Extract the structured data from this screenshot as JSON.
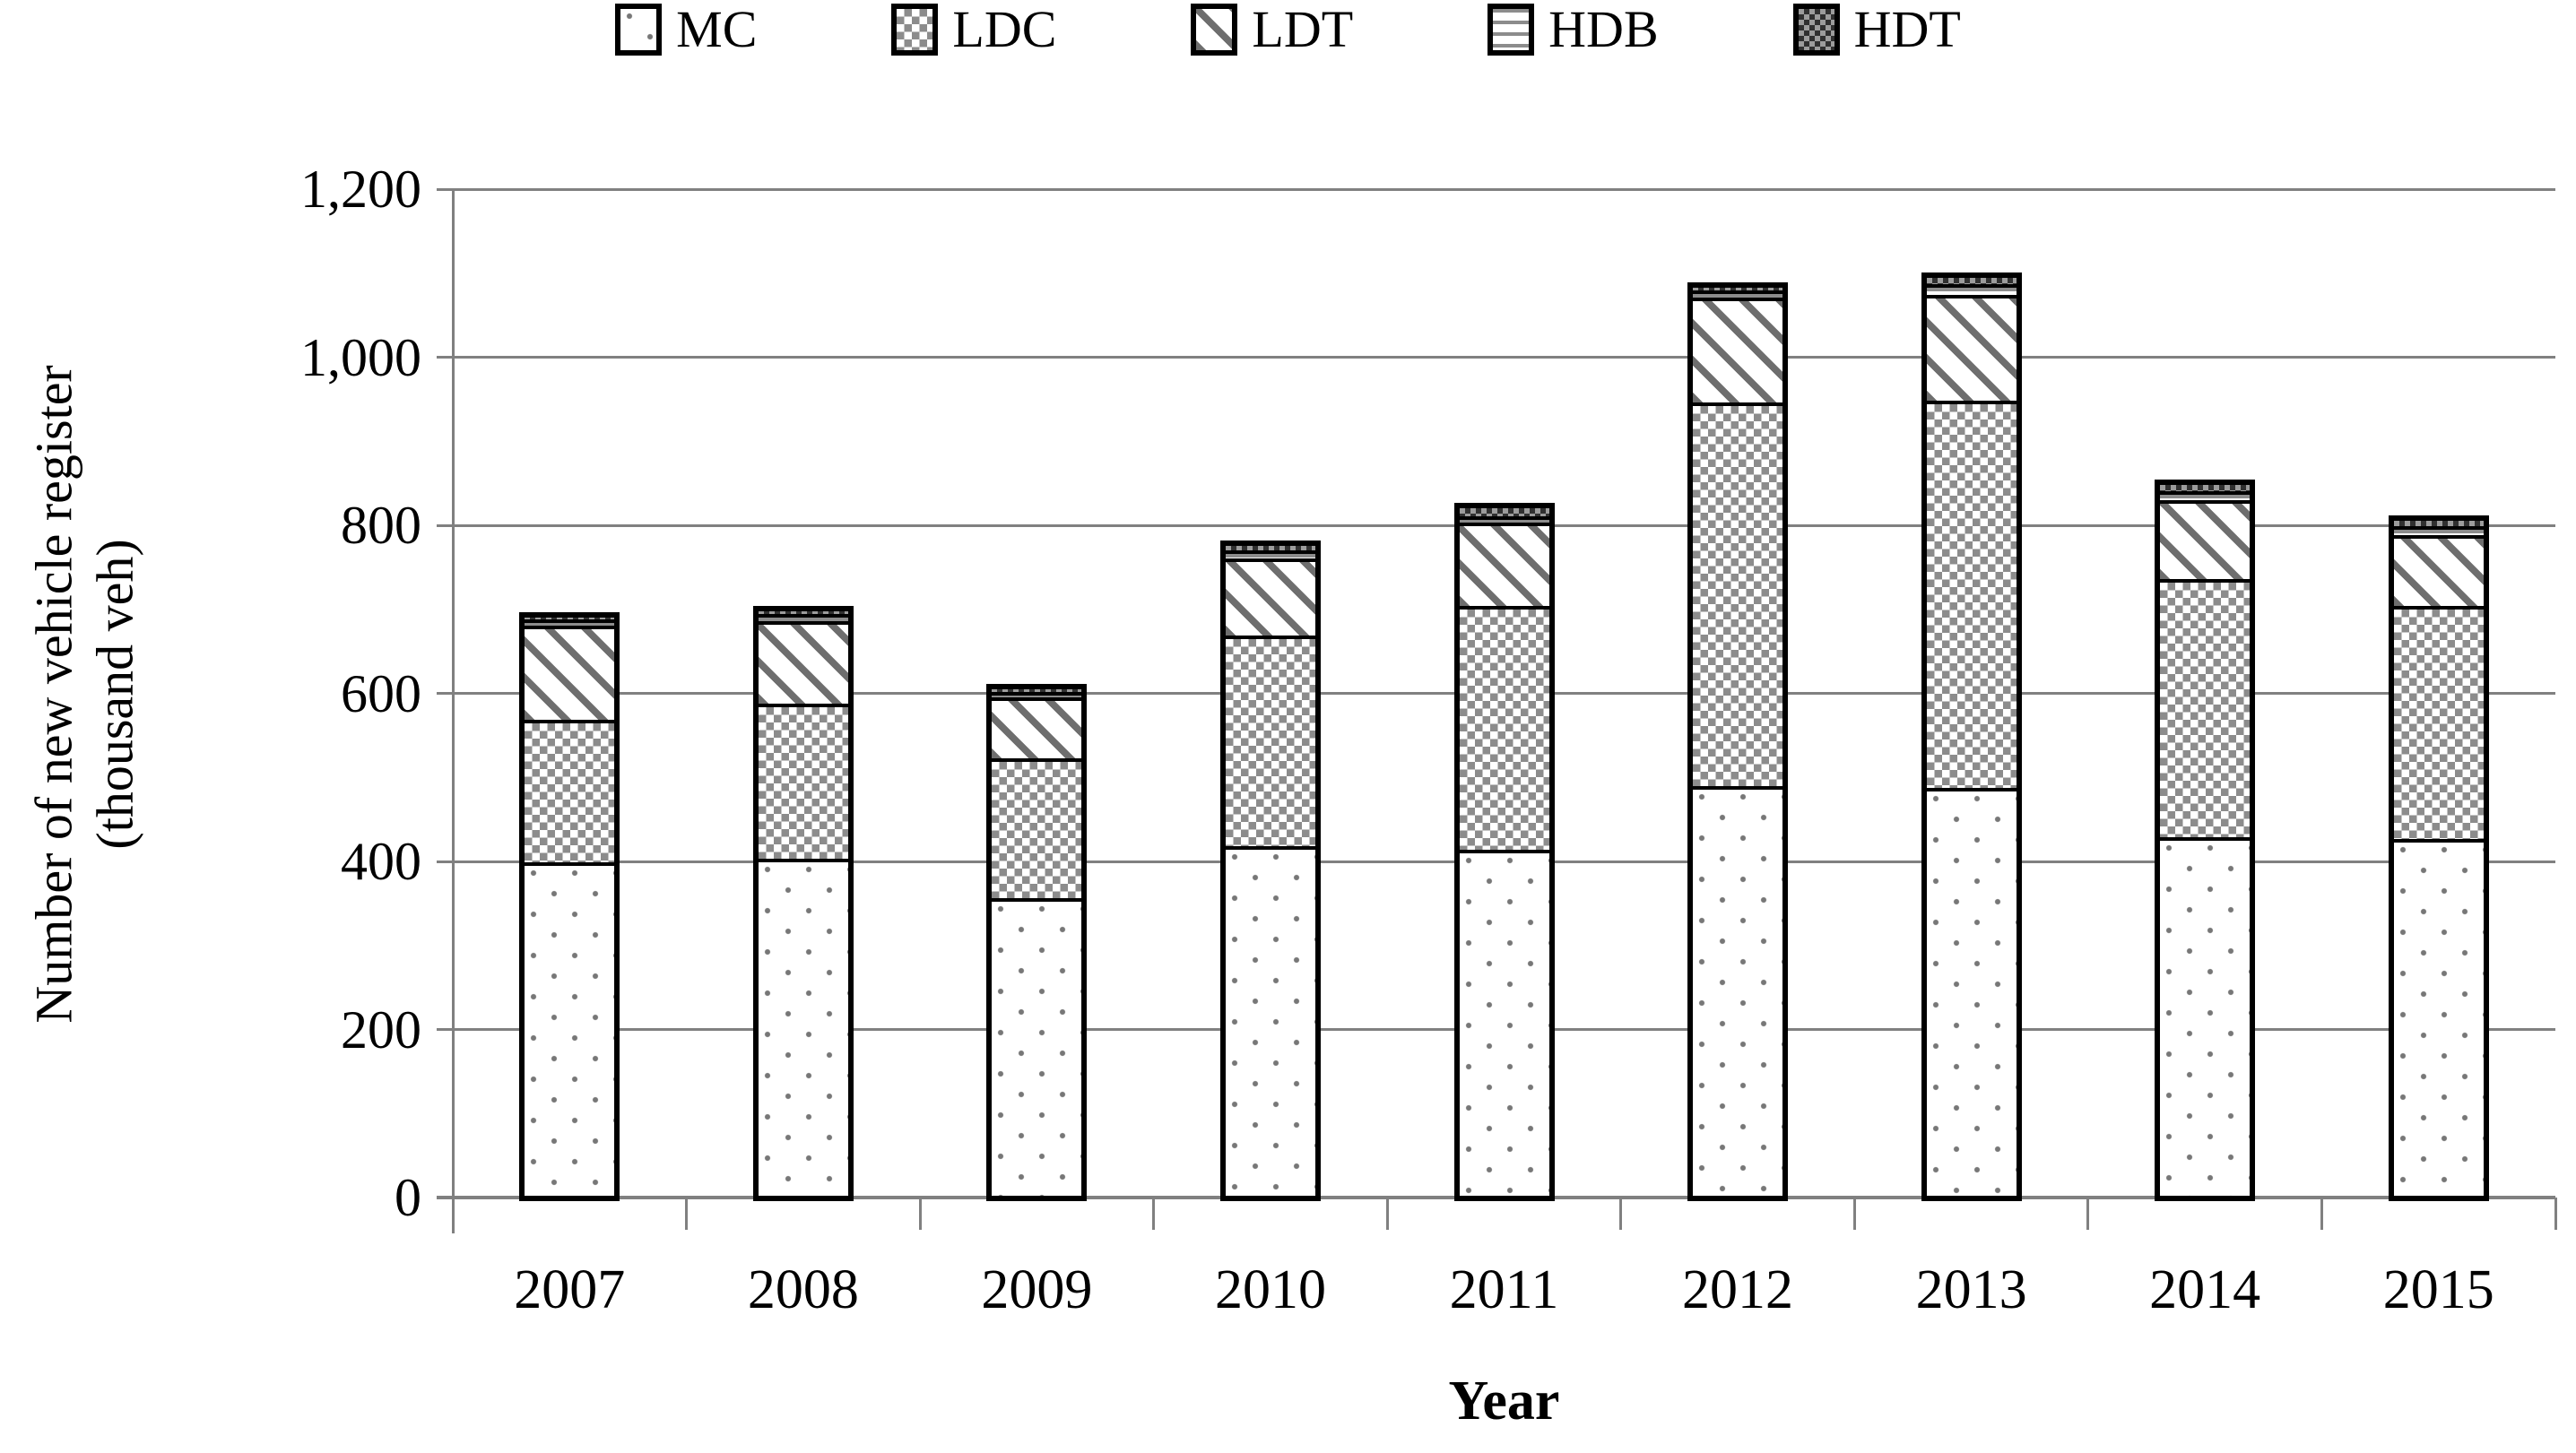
{
  "chart_data": {
    "type": "bar",
    "stacked": true,
    "title": "",
    "xlabel": "Year",
    "ylabel": "Number of new vehicle register (thousand veh)",
    "ylabel_lines": [
      "Number of new vehicle register",
      "(thousand veh)"
    ],
    "ylim": [
      0,
      1200
    ],
    "grid": true,
    "legend_position": "top",
    "categories": [
      "2007",
      "2008",
      "2009",
      "2010",
      "2011",
      "2012",
      "2013",
      "2014",
      "2015"
    ],
    "series": [
      {
        "name": "MC",
        "pattern": "dots",
        "values": [
          397,
          402,
          355,
          416,
          412,
          487,
          485,
          427,
          425
        ]
      },
      {
        "name": "LDC",
        "pattern": "checker",
        "values": [
          172,
          186,
          169,
          254,
          293,
          460,
          464,
          310,
          280
        ]
      },
      {
        "name": "LDT",
        "pattern": "diagonal",
        "values": [
          114,
          100,
          73,
          92,
          100,
          126,
          127,
          95,
          85
        ]
      },
      {
        "name": "HDB",
        "pattern": "hlines",
        "values": [
          7,
          8,
          7,
          10,
          8,
          9,
          13,
          11,
          11
        ]
      },
      {
        "name": "HDT",
        "pattern": "checker-dark",
        "values": [
          7,
          8,
          7,
          10,
          14,
          7,
          12,
          11,
          11
        ]
      }
    ],
    "totals": [
      697,
      704,
      611,
      782,
      827,
      1089,
      1101,
      854,
      812
    ],
    "yticks": {
      "values": [
        0,
        200,
        400,
        600,
        800,
        1000,
        1200
      ],
      "labels": [
        "0",
        "200",
        "400",
        "600",
        "800",
        "1,000",
        "1,200"
      ]
    }
  },
  "colors": {
    "bar_outline": "#000000",
    "grid": "#808080",
    "pattern_gray": "#8c8c8c",
    "background": "#ffffff",
    "text": "#000000"
  }
}
